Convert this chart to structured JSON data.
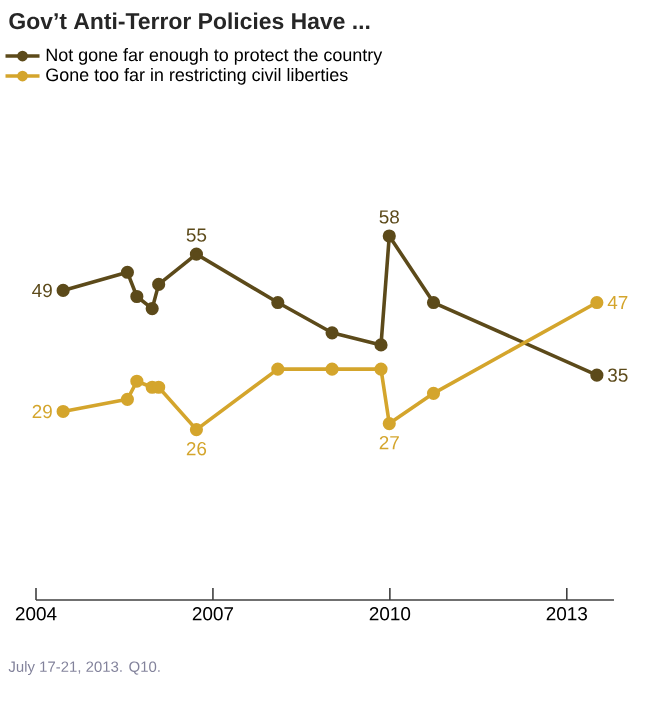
{
  "chart_data": {
    "type": "line",
    "title": "Gov’t Anti-Terror Policies Have ...",
    "x": [
      2004.46,
      2005.55,
      2005.71,
      2005.97,
      2006.08,
      2006.72,
      2008.1,
      2009.02,
      2009.85,
      2009.99,
      2010.74,
      2013.51
    ],
    "series": [
      {
        "name": "Not gone far enough to protect the country",
        "color": "#5c4a1a",
        "values": [
          49,
          52,
          48,
          46,
          50,
          55,
          47,
          42,
          40,
          58,
          47,
          35
        ],
        "value_labels": [
          "49",
          null,
          null,
          null,
          null,
          "55",
          null,
          null,
          null,
          "58",
          null,
          "35"
        ]
      },
      {
        "name": "Gone too far in restricting civil liberties",
        "color": "#d4a52c",
        "values": [
          29,
          31,
          34,
          33,
          33,
          26,
          36,
          36,
          36,
          27,
          32,
          47
        ],
        "value_labels": [
          "29",
          null,
          null,
          null,
          null,
          "26",
          null,
          null,
          null,
          "27",
          null,
          "47"
        ]
      }
    ],
    "xlim": [
      2004,
      2013.8
    ],
    "xticks": [
      2004,
      2007,
      2010,
      2013
    ],
    "tick_labels": "x",
    "legend": "top left",
    "marker": "circle",
    "annotations": [
      "July 17-21, 2013. Q10."
    ]
  }
}
